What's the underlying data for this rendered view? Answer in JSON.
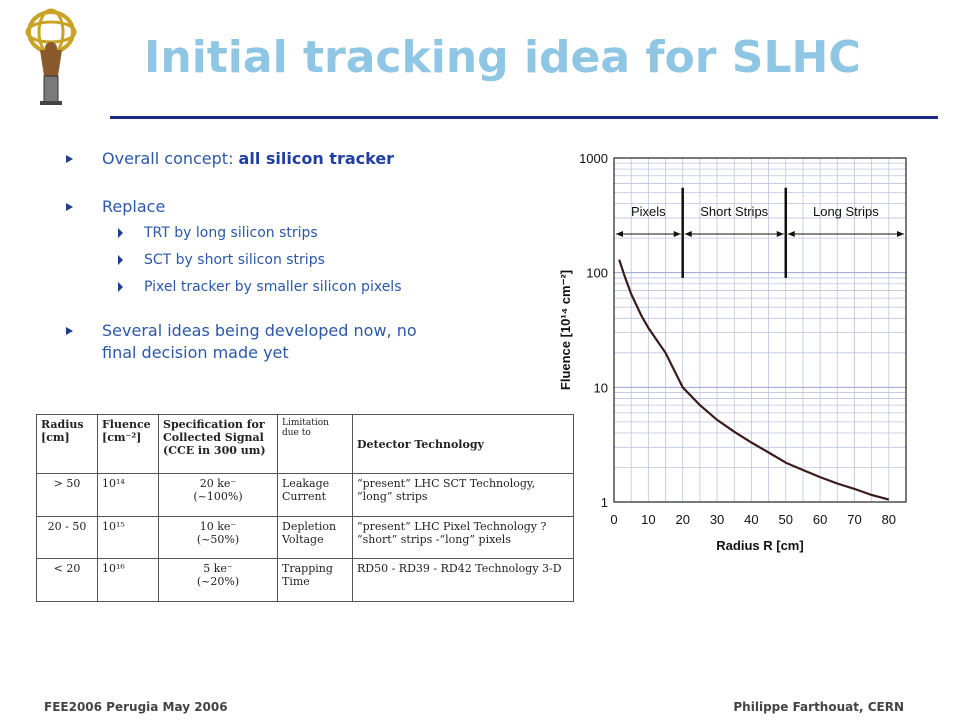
{
  "slide": {
    "title": "Initial tracking idea for SLHC"
  },
  "bullets": {
    "b1_prefix": "Overall concept: ",
    "b1_bold": "all silicon tracker",
    "b2": "Replace",
    "b2_sub": [
      "TRT by long silicon strips",
      "SCT by short silicon strips",
      "Pixel tracker by smaller silicon pixels"
    ],
    "b3_line1": "Several ideas being developed now, no",
    "b3_line2": "final decision made yet"
  },
  "table": {
    "headers": [
      "Radius [cm]",
      "Fluence [cm⁻²]",
      "Specification for Collected Signal (CCE in 300 um)",
      "Limitation due to",
      "Detector Technology"
    ],
    "rows": [
      {
        "radius": "> 50",
        "fluence": "10¹⁴",
        "signal1": "20 ke⁻",
        "signal2": "(~100%)",
        "limit": "Leakage Current",
        "tech": "“present” LHC SCT Technology, “long” strips"
      },
      {
        "radius": "20 - 50",
        "fluence": "10¹⁵",
        "signal1": "10 ke⁻",
        "signal2": "(~50%)",
        "limit": "Depletion Voltage",
        "tech": "“present” LHC Pixel Technology ? “short” strips -“long” pixels"
      },
      {
        "radius": "< 20",
        "fluence": "10¹⁶",
        "signal1": "5 ke⁻",
        "signal2": "(~20%)",
        "limit": "Trapping Time",
        "tech": "RD50 - RD39 - RD42 Technology 3-D"
      }
    ]
  },
  "chart_data": {
    "type": "line",
    "xlabel": "Radius R [cm]",
    "ylabel": "Fluence [10¹⁴ cm⁻²]",
    "xlim": [
      0,
      85
    ],
    "ylim": [
      1,
      1000
    ],
    "yscale": "log",
    "grid": true,
    "xticks": [
      "0",
      "10",
      "20",
      "30",
      "40",
      "50",
      "60",
      "70",
      "80"
    ],
    "yticks": [
      "1",
      "10",
      "100",
      "1000"
    ],
    "series": [
      {
        "x": [
          1.5,
          3,
          5,
          8,
          10,
          12,
          15,
          20,
          25,
          30,
          35,
          40,
          45,
          50,
          55,
          60,
          65,
          70,
          75,
          80
        ],
        "y": [
          130,
          95,
          65,
          42,
          33,
          27,
          20,
          10,
          7,
          5.2,
          4.1,
          3.3,
          2.7,
          2.2,
          1.9,
          1.65,
          1.45,
          1.3,
          1.15,
          1.05
        ]
      }
    ],
    "regions": [
      {
        "label": "Pixels",
        "from": 0,
        "to": 20
      },
      {
        "label": "Short Strips",
        "from": 20,
        "to": 50
      },
      {
        "label": "Long Strips",
        "from": 50,
        "to": 85
      }
    ],
    "dividers": [
      20,
      50
    ]
  },
  "footer": {
    "left": "FEE2006 Perugia May 2006",
    "right": "Philippe Farthouat, CERN"
  }
}
